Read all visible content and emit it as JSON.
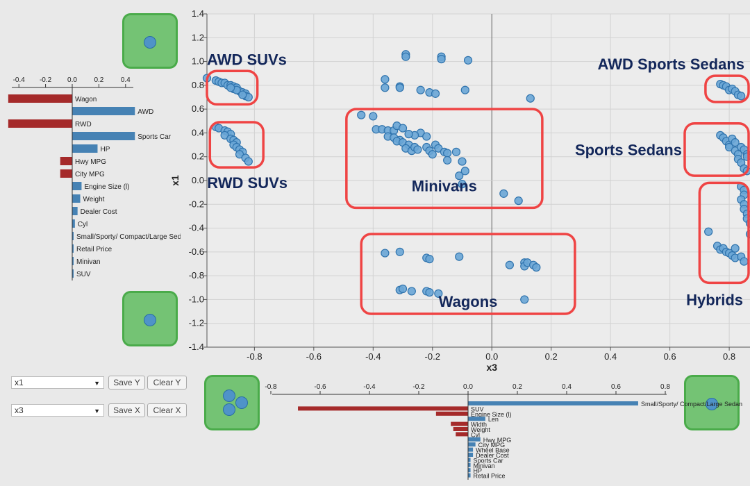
{
  "colors": {
    "positive": "#4682b4",
    "negative": "#a52a2a",
    "point_fill": "#6aa6d6",
    "point_stroke": "#2f73ad",
    "box": "#ef4444",
    "thumb": "#74c374"
  },
  "icons": [
    "single-point-thumbnail",
    "cluster-thumbnail"
  ],
  "left_panel": {
    "ticks": [
      "-0.4",
      "-0.2",
      "0.0",
      "0.2",
      "0.4"
    ],
    "bars": [
      {
        "label": "Wagon",
        "value": -0.48
      },
      {
        "label": "AWD",
        "value": 0.47
      },
      {
        "label": "RWD",
        "value": -0.48
      },
      {
        "label": "Sports Car",
        "value": 0.47
      },
      {
        "label": "HP",
        "value": 0.19
      },
      {
        "label": "Hwy MPG",
        "value": -0.09
      },
      {
        "label": "City MPG",
        "value": -0.09
      },
      {
        "label": "Engine Size (l)",
        "value": 0.07
      },
      {
        "label": "Weight",
        "value": 0.06
      },
      {
        "label": "Dealer Cost",
        "value": 0.04
      },
      {
        "label": "Cyl",
        "value": 0.02
      },
      {
        "label": "Small/Sporty/ Compact/Large Sedan",
        "value": 0.01
      },
      {
        "label": "Retail Price",
        "value": 0.01
      },
      {
        "label": "Minivan",
        "value": 0.01
      },
      {
        "label": "SUV",
        "value": 0.01
      }
    ]
  },
  "bottom_panel": {
    "ticks": [
      "-0.8",
      "-0.6",
      "-0.4",
      "-0.2",
      "0.0",
      "0.2",
      "0.4",
      "0.6",
      "0.8"
    ],
    "bars": [
      {
        "label": "Small/Sporty/ Compact/Large Sedan",
        "value": 0.69
      },
      {
        "label": "SUV",
        "value": -0.69
      },
      {
        "label": "Engine Size (l)",
        "value": -0.13
      },
      {
        "label": "Len",
        "value": 0.07
      },
      {
        "label": "Width",
        "value": -0.07
      },
      {
        "label": "Weight",
        "value": -0.06
      },
      {
        "label": "Cyl",
        "value": -0.05
      },
      {
        "label": "Hwy MPG",
        "value": 0.05
      },
      {
        "label": "City MPG",
        "value": 0.03
      },
      {
        "label": "Wheel Base",
        "value": 0.02
      },
      {
        "label": "Dealer Cost",
        "value": 0.02
      },
      {
        "label": "Sports Car",
        "value": 0.01
      },
      {
        "label": "Minivan",
        "value": 0.01
      },
      {
        "label": "HP",
        "value": 0.01
      },
      {
        "label": "Retail Price",
        "value": 0.01
      }
    ]
  },
  "controls": {
    "y_select": "x1",
    "x_select": "x3",
    "save_y": "Save Y",
    "clear_y": "Clear Y",
    "save_x": "Save X",
    "clear_x": "Clear X"
  },
  "chart_data": {
    "type": "scatter",
    "xlabel": "x3",
    "ylabel": "x1",
    "xlim": [
      -0.96,
      0.87
    ],
    "ylim": [
      -1.4,
      1.4
    ],
    "xticks": [
      "-0.8",
      "-0.6",
      "-0.4",
      "-0.2",
      "0.0",
      "0.2",
      "0.4",
      "0.6",
      "0.8"
    ],
    "yticks": [
      "1.4",
      "1.2",
      "1.0",
      "0.8",
      "0.6",
      "0.4",
      "0.2",
      "0.0",
      "-0.2",
      "-0.4",
      "-0.6",
      "-0.8",
      "-1.0",
      "-1.2",
      "-1.4"
    ],
    "grid": true,
    "clusters": [
      {
        "label": "AWD SUVs",
        "x_range": [
          -0.96,
          -0.79
        ],
        "y_range": [
          0.64,
          0.92
        ]
      },
      {
        "label": "RWD SUVs",
        "x_range": [
          -0.95,
          -0.77
        ],
        "y_range": [
          0.11,
          0.49
        ]
      },
      {
        "label": "Minivans",
        "x_range": [
          -0.49,
          0.17
        ],
        "y_range": [
          -0.23,
          0.6
        ]
      },
      {
        "label": "Wagons",
        "x_range": [
          -0.44,
          0.28
        ],
        "y_range": [
          -1.12,
          -0.45
        ]
      },
      {
        "label": "AWD Sports Sedans",
        "x_range": [
          0.72,
          0.87
        ],
        "y_range": [
          0.66,
          0.88
        ]
      },
      {
        "label": "Sports Sedans",
        "x_range": [
          0.65,
          0.87
        ],
        "y_range": [
          0.04,
          0.48
        ]
      },
      {
        "label": "Hybrids",
        "x_range": [
          0.7,
          0.87
        ],
        "y_range": [
          -0.86,
          -0.02
        ]
      }
    ],
    "points": [
      [
        -0.96,
        0.86
      ],
      [
        -0.93,
        0.84
      ],
      [
        -0.92,
        0.83
      ],
      [
        -0.91,
        0.82
      ],
      [
        -0.9,
        0.82
      ],
      [
        -0.89,
        0.8
      ],
      [
        -0.88,
        0.8
      ],
      [
        -0.87,
        0.79
      ],
      [
        -0.87,
        0.77
      ],
      [
        -0.86,
        0.78
      ],
      [
        -0.85,
        0.75
      ],
      [
        -0.84,
        0.74
      ],
      [
        -0.83,
        0.73
      ],
      [
        -0.83,
        0.71
      ],
      [
        -0.82,
        0.7
      ],
      [
        -0.84,
        0.72
      ],
      [
        -0.86,
        0.76
      ],
      [
        -0.88,
        0.78
      ],
      [
        -0.93,
        0.45
      ],
      [
        -0.92,
        0.44
      ],
      [
        -0.9,
        0.42
      ],
      [
        -0.89,
        0.41
      ],
      [
        -0.88,
        0.39
      ],
      [
        -0.9,
        0.38
      ],
      [
        -0.88,
        0.35
      ],
      [
        -0.87,
        0.34
      ],
      [
        -0.86,
        0.32
      ],
      [
        -0.87,
        0.3
      ],
      [
        -0.86,
        0.28
      ],
      [
        -0.85,
        0.26
      ],
      [
        -0.84,
        0.24
      ],
      [
        -0.85,
        0.22
      ],
      [
        -0.83,
        0.19
      ],
      [
        -0.82,
        0.16
      ],
      [
        -0.29,
        1.06
      ],
      [
        -0.29,
        1.04
      ],
      [
        -0.17,
        1.04
      ],
      [
        -0.17,
        1.02
      ],
      [
        -0.08,
        1.01
      ],
      [
        -0.36,
        0.85
      ],
      [
        -0.36,
        0.78
      ],
      [
        -0.31,
        0.79
      ],
      [
        -0.31,
        0.78
      ],
      [
        -0.24,
        0.76
      ],
      [
        -0.21,
        0.74
      ],
      [
        -0.19,
        0.73
      ],
      [
        -0.09,
        0.76
      ],
      [
        0.13,
        0.69
      ],
      [
        -0.44,
        0.55
      ],
      [
        -0.4,
        0.54
      ],
      [
        -0.39,
        0.43
      ],
      [
        -0.37,
        0.43
      ],
      [
        -0.35,
        0.42
      ],
      [
        -0.33,
        0.42
      ],
      [
        -0.32,
        0.46
      ],
      [
        -0.3,
        0.44
      ],
      [
        -0.35,
        0.37
      ],
      [
        -0.33,
        0.36
      ],
      [
        -0.31,
        0.34
      ],
      [
        -0.32,
        0.33
      ],
      [
        -0.3,
        0.32
      ],
      [
        -0.28,
        0.3
      ],
      [
        -0.29,
        0.27
      ],
      [
        -0.27,
        0.25
      ],
      [
        -0.26,
        0.28
      ],
      [
        -0.25,
        0.26
      ],
      [
        -0.24,
        0.4
      ],
      [
        -0.26,
        0.38
      ],
      [
        -0.28,
        0.39
      ],
      [
        -0.22,
        0.37
      ],
      [
        -0.22,
        0.28
      ],
      [
        -0.21,
        0.25
      ],
      [
        -0.2,
        0.22
      ],
      [
        -0.19,
        0.3
      ],
      [
        -0.18,
        0.27
      ],
      [
        -0.16,
        0.24
      ],
      [
        -0.15,
        0.23
      ],
      [
        -0.15,
        0.17
      ],
      [
        -0.12,
        0.24
      ],
      [
        -0.1,
        0.16
      ],
      [
        -0.09,
        0.08
      ],
      [
        -0.11,
        0.04
      ],
      [
        -0.1,
        -0.03
      ],
      [
        0.04,
        -0.11
      ],
      [
        0.09,
        -0.17
      ],
      [
        -0.36,
        -0.61
      ],
      [
        -0.31,
        -0.6
      ],
      [
        -0.22,
        -0.65
      ],
      [
        -0.21,
        -0.66
      ],
      [
        -0.11,
        -0.64
      ],
      [
        0.06,
        -0.71
      ],
      [
        0.11,
        -0.69
      ],
      [
        0.11,
        -0.72
      ],
      [
        0.12,
        -0.69
      ],
      [
        0.14,
        -0.71
      ],
      [
        0.15,
        -0.73
      ],
      [
        -0.31,
        -0.92
      ],
      [
        -0.3,
        -0.91
      ],
      [
        -0.27,
        -0.93
      ],
      [
        -0.22,
        -0.93
      ],
      [
        -0.21,
        -0.94
      ],
      [
        -0.18,
        -0.95
      ],
      [
        0.11,
        -1.0
      ],
      [
        0.77,
        0.81
      ],
      [
        0.78,
        0.8
      ],
      [
        0.79,
        0.79
      ],
      [
        0.8,
        0.76
      ],
      [
        0.81,
        0.77
      ],
      [
        0.82,
        0.75
      ],
      [
        0.83,
        0.72
      ],
      [
        0.84,
        0.71
      ],
      [
        0.77,
        0.38
      ],
      [
        0.78,
        0.36
      ],
      [
        0.79,
        0.33
      ],
      [
        0.8,
        0.3
      ],
      [
        0.8,
        0.28
      ],
      [
        0.81,
        0.35
      ],
      [
        0.82,
        0.32
      ],
      [
        0.82,
        0.25
      ],
      [
        0.83,
        0.22
      ],
      [
        0.83,
        0.18
      ],
      [
        0.84,
        0.15
      ],
      [
        0.84,
        0.28
      ],
      [
        0.85,
        0.26
      ],
      [
        0.85,
        0.1
      ],
      [
        0.86,
        0.08
      ],
      [
        0.86,
        0.22
      ],
      [
        0.86,
        0.2
      ],
      [
        0.84,
        -0.05
      ],
      [
        0.85,
        -0.08
      ],
      [
        0.85,
        -0.12
      ],
      [
        0.84,
        -0.16
      ],
      [
        0.85,
        -0.2
      ],
      [
        0.85,
        -0.24
      ],
      [
        0.86,
        -0.28
      ],
      [
        0.86,
        -0.32
      ],
      [
        0.87,
        -0.36
      ],
      [
        0.87,
        -0.45
      ],
      [
        0.73,
        -0.43
      ],
      [
        0.76,
        -0.55
      ],
      [
        0.77,
        -0.58
      ],
      [
        0.78,
        -0.57
      ],
      [
        0.79,
        -0.6
      ],
      [
        0.8,
        -0.61
      ],
      [
        0.81,
        -0.63
      ],
      [
        0.82,
        -0.65
      ],
      [
        0.84,
        -0.64
      ],
      [
        0.85,
        -0.68
      ],
      [
        0.82,
        -0.57
      ]
    ]
  }
}
